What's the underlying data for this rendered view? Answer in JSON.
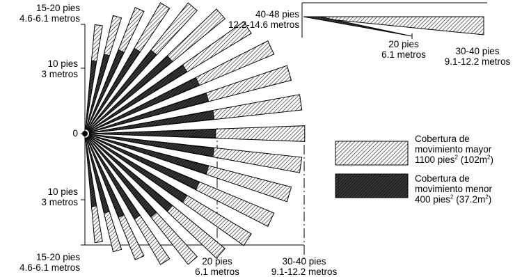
{
  "left_axis": {
    "top_feet": "15-20 pies",
    "top_meters": "4.6-6.1 metros",
    "mid_upper_feet": "10 pies",
    "mid_upper_meters": "3 metros",
    "zero": "0",
    "mid_lower_feet": "10 pies",
    "mid_lower_meters": "3 metros",
    "bottom_feet": "15-20 pies",
    "bottom_meters": "4.6-6.1 metros"
  },
  "bottom_axis": {
    "near_feet": "20 pies",
    "near_meters": "6.1 metros",
    "far_feet": "30-40 pies",
    "far_meters": "9.1-12.2 metros"
  },
  "side_view": {
    "height_feet": "40-48 pies",
    "height_meters": "12.2-14.6 metros",
    "near_feet": "20 pies",
    "near_meters": "6.1 metros",
    "far_feet": "30-40 pies",
    "far_meters": "9.1-12.2 metros"
  },
  "legend": {
    "major": {
      "line1": "Cobertura de",
      "line2": "movimiento mayor",
      "area_prefix": "1100 pies",
      "area_sup": "2",
      "area_mid": " (102m",
      "area_sup2": "2",
      "area_end": ")"
    },
    "minor": {
      "line1": "Cobertura de",
      "line2": "movimiento menor",
      "area_prefix": "400 pies",
      "area_sup": "2",
      "area_mid": " (37.2m",
      "area_sup2": "2",
      "area_end": ")"
    }
  },
  "zone_count": 21,
  "colors": {
    "ink": "#000000",
    "paper": "#ffffff"
  }
}
